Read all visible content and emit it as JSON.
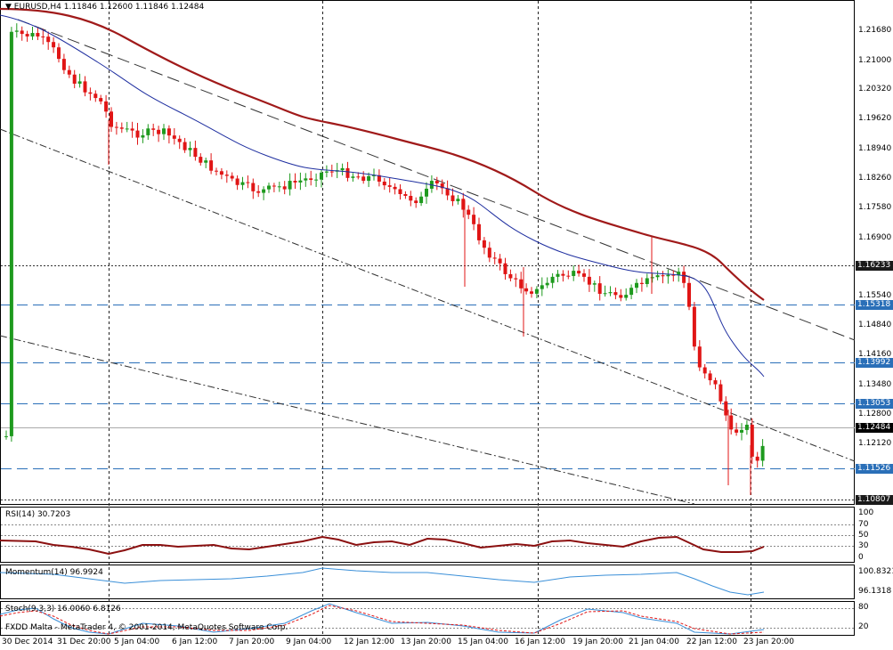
{
  "main": {
    "header": "EURUSD,H4  1.11846 1.12600 1.11846 1.12484",
    "price_ticks": [
      "1.21680",
      "1.21000",
      "1.20320",
      "1.19620",
      "1.18940",
      "1.18260",
      "1.17580",
      "1.16900",
      "1.15540",
      "1.14840",
      "1.14160",
      "1.13480",
      "1.12800",
      "1.12120"
    ],
    "price_labels": [
      {
        "text": "1.16233",
        "color": "#1a1a1a"
      },
      {
        "text": "1.15318",
        "color": "#2a6fb8"
      },
      {
        "text": "1.13992",
        "color": "#2a6fb8"
      },
      {
        "text": "1.13053",
        "color": "#2a6fb8"
      },
      {
        "text": "1.12484",
        "color": "#000000"
      },
      {
        "text": "1.11526",
        "color": "#2a6fb8"
      },
      {
        "text": "1.10807",
        "color": "#1a1a1a"
      }
    ]
  },
  "rsi": {
    "header": "RSI(14) 30.7203",
    "ticks": [
      "100",
      "70",
      "50",
      "30",
      "0"
    ]
  },
  "momentum": {
    "header": "Momentum(14) 96.9924",
    "ticks": [
      "100.8321",
      "96.1318"
    ]
  },
  "stoch": {
    "header": "Stoch(9,3,3) 16.0060 6.8126",
    "ticks": [
      "80",
      "20"
    ]
  },
  "watermark": "FXDD Malta - MetaTrader 4, © 2001-2014, MetaQuotes Software Corp.",
  "time_labels": [
    "30 Dec 2014",
    "31 Dec 20:00",
    "5 Jan 04:00",
    "6 Jan 12:00",
    "7 Jan 20:00",
    "9 Jan 04:00",
    "12 Jan 12:00",
    "13 Jan 20:00",
    "15 Jan 04:00",
    "16 Jan 12:00",
    "19 Jan 20:00",
    "21 Jan 04:00",
    "22 Jan 12:00",
    "23 Jan 20:00"
  ],
  "colors": {
    "bull": "#1e9a1e",
    "bear": "#e01515",
    "ma_fast": "#1f2fa0",
    "ma_slow": "#a01a1a",
    "levels": "#2a6fb8",
    "rsi": "#8b1010",
    "momentum": "#3a8fd8"
  }
}
